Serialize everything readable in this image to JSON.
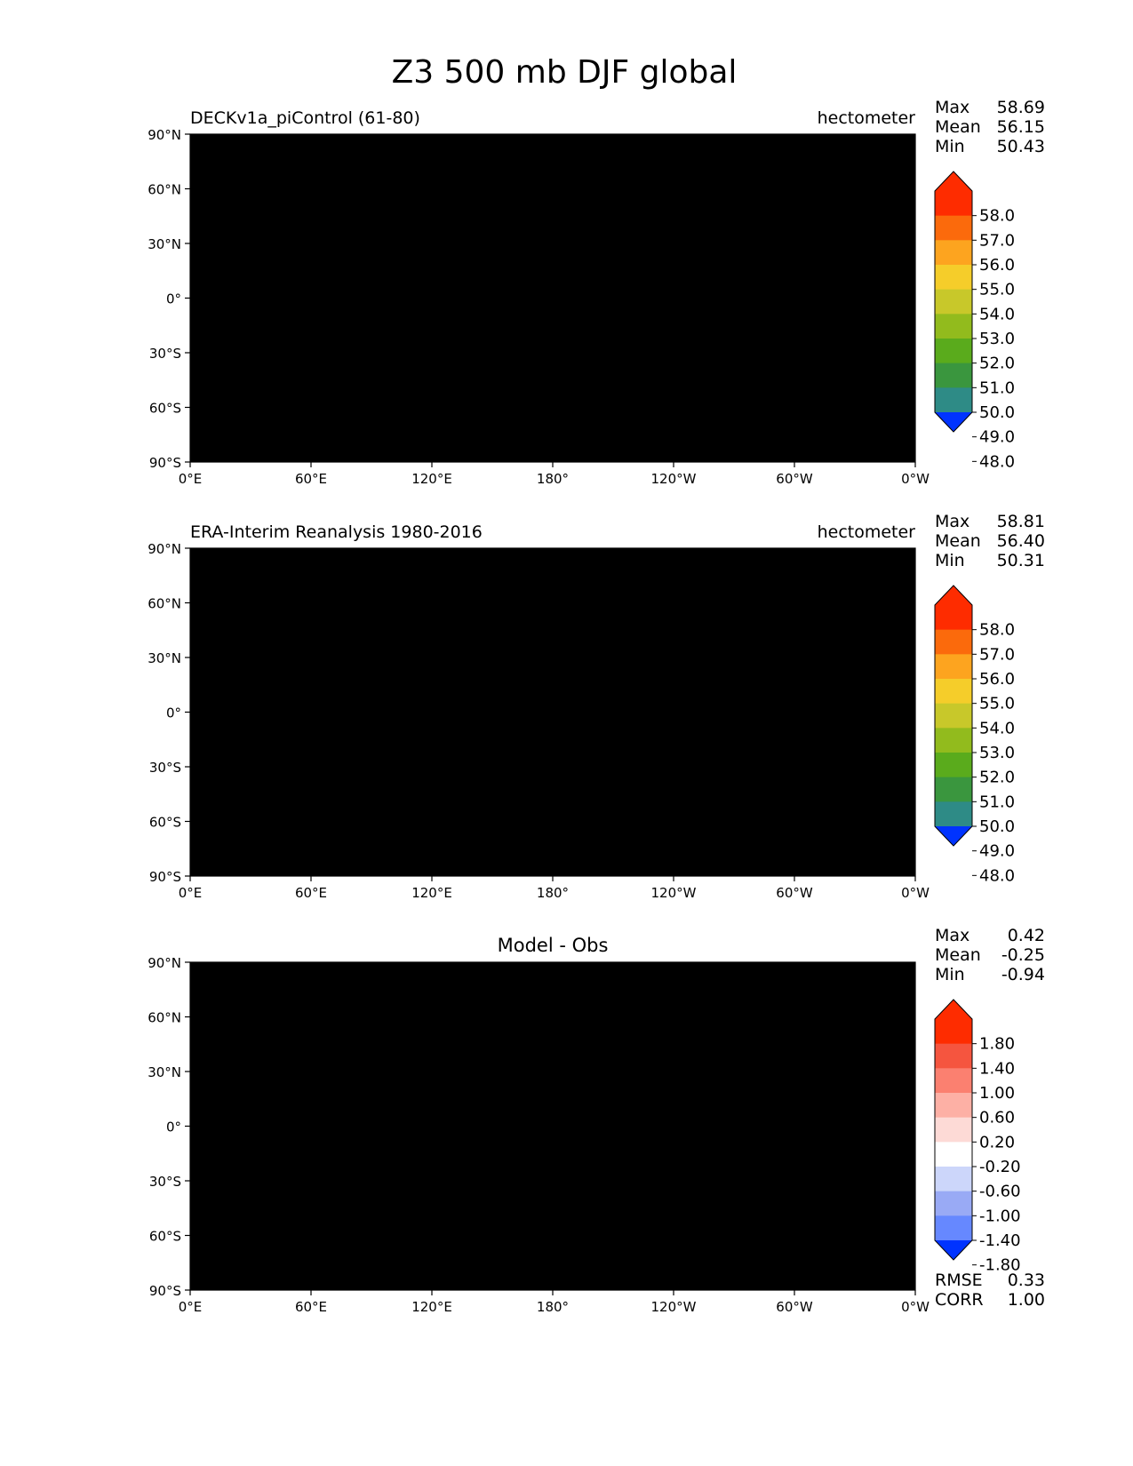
{
  "title": "Z3 500 mb DJF global",
  "lon_ticks": [
    "0°E",
    "60°E",
    "120°E",
    "180°",
    "120°W",
    "60°W",
    "0°W"
  ],
  "lat_ticks": [
    "90°N",
    "60°N",
    "30°N",
    "0°",
    "30°S",
    "60°S",
    "90°S"
  ],
  "panels": [
    {
      "title_left": "DECKv1a_piControl (61-80)",
      "title_center": "",
      "units": "hectometer",
      "stats": [
        {
          "label": "Max",
          "value": "58.69"
        },
        {
          "label": "Mean",
          "value": "56.15"
        },
        {
          "label": "Min",
          "value": "50.43"
        }
      ],
      "extra_stats": [],
      "colorbar_labels": [
        "58.0",
        "57.0",
        "56.0",
        "55.0",
        "54.0",
        "53.0",
        "52.0",
        "51.0",
        "50.0",
        "49.0",
        "48.0"
      ]
    },
    {
      "title_left": "ERA-Interim Reanalysis 1980-2016",
      "title_center": "",
      "units": "hectometer",
      "stats": [
        {
          "label": "Max",
          "value": "58.81"
        },
        {
          "label": "Mean",
          "value": "56.40"
        },
        {
          "label": "Min",
          "value": "50.31"
        }
      ],
      "extra_stats": [],
      "colorbar_labels": [
        "58.0",
        "57.0",
        "56.0",
        "55.0",
        "54.0",
        "53.0",
        "52.0",
        "51.0",
        "50.0",
        "49.0",
        "48.0"
      ]
    },
    {
      "title_left": "",
      "title_center": "Model - Obs",
      "units": "",
      "stats": [
        {
          "label": "Max",
          "value": "0.42"
        },
        {
          "label": "Mean",
          "value": "-0.25"
        },
        {
          "label": "Min",
          "value": "-0.94"
        }
      ],
      "extra_stats": [
        {
          "label": "RMSE",
          "value": "0.33"
        },
        {
          "label": "CORR",
          "value": "1.00"
        }
      ],
      "colorbar_labels": [
        "1.80",
        "1.40",
        "1.00",
        "0.60",
        "0.20",
        "-0.20",
        "-0.60",
        "-1.00",
        "-1.40",
        "-1.80"
      ]
    }
  ],
  "colors": {
    "field_scale": [
      "#0033ff",
      "#0066cc",
      "#2e8b86",
      "#3a963e",
      "#5aab1c",
      "#92bb1d",
      "#c8c82a",
      "#f5cd2a",
      "#fda41f",
      "#fb6a0c",
      "#fe2c00"
    ],
    "diff_scale": [
      "#0033ff",
      "#3366ff",
      "#6688ff",
      "#99aaf5",
      "#ccd6fa",
      "#ffffff",
      "#fddad6",
      "#fdb0a5",
      "#fb8070",
      "#f5553f",
      "#fe2c00"
    ]
  }
}
